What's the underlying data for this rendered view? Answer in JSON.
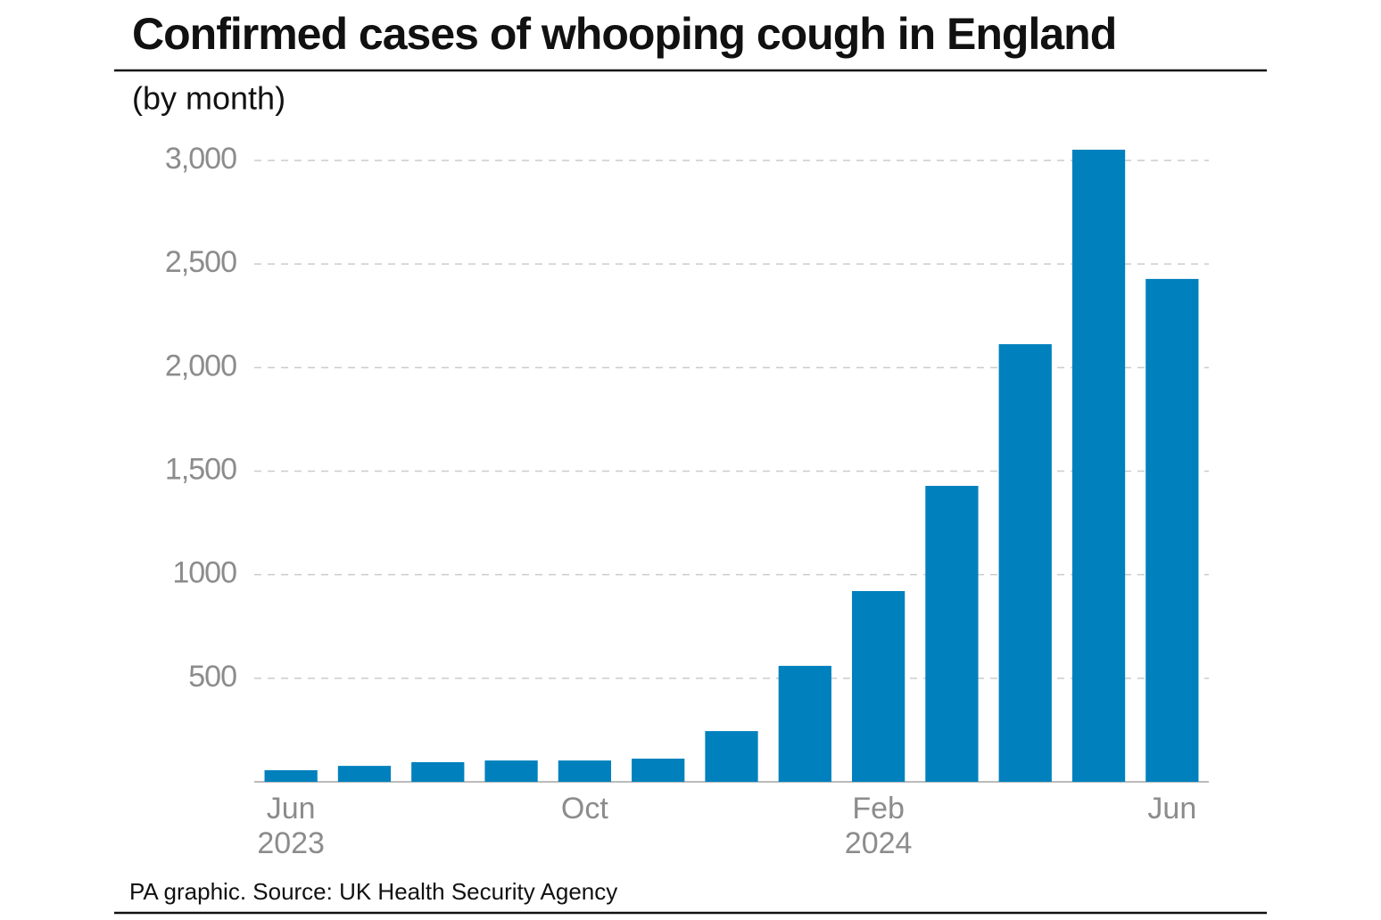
{
  "chart_data": {
    "type": "bar",
    "title": "Confirmed cases of whooping cough in England",
    "subtitle": "(by month)",
    "source": "PA graphic. Source: UK Health Security Agency",
    "categories": [
      "Jun\n2023",
      null,
      null,
      null,
      "Oct",
      null,
      null,
      null,
      "Feb\n2024",
      null,
      null,
      null,
      "Jun"
    ],
    "values": [
      56,
      77,
      95,
      103,
      103,
      112,
      245,
      560,
      921,
      1429,
      2113,
      3052,
      2428
    ],
    "color": "#0081bd",
    "ylim": [
      0,
      3000
    ],
    "yticks": [
      500,
      1000,
      {
        "value": 1500,
        "label": "1,500"
      },
      {
        "value": 2000,
        "label": "2,000"
      },
      {
        "value": 2500,
        "label": "2,500"
      },
      {
        "value": 3000,
        "label": "3,000"
      }
    ],
    "grid": true
  }
}
